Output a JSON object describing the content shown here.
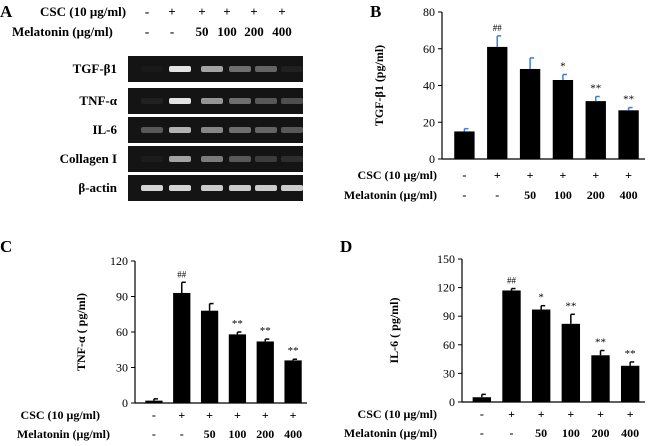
{
  "panel_labels": [
    "A",
    "B",
    "C",
    "D"
  ],
  "gel": {
    "header": {
      "csc_label": "CSC (10 μg/ml)",
      "mel_label": "Melatonin (μg/ml)",
      "csc": [
        "-",
        "+",
        "+",
        "+",
        "+",
        "+"
      ],
      "mel": [
        "-",
        "-",
        "50",
        "100",
        "200",
        "400"
      ]
    },
    "rows": [
      {
        "label": "TGF-β1",
        "intensity": [
          0.03,
          0.95,
          0.75,
          0.55,
          0.5,
          0.1
        ]
      },
      {
        "label": "TNF-α",
        "intensity": [
          0.1,
          0.95,
          0.7,
          0.55,
          0.45,
          0.4
        ]
      },
      {
        "label": "IL-6",
        "intensity": [
          0.45,
          0.8,
          0.65,
          0.55,
          0.5,
          0.45
        ]
      },
      {
        "label": "Collagen I",
        "intensity": [
          0.05,
          0.75,
          0.6,
          0.45,
          0.3,
          0.2
        ]
      },
      {
        "label": "β-actin",
        "intensity": [
          0.9,
          0.9,
          0.88,
          0.88,
          0.88,
          0.88
        ]
      }
    ]
  },
  "chart_data": [
    {
      "panel": "B",
      "type": "bar",
      "title": "",
      "xlabel": "",
      "ylabel": "TGF-β1 (pg/ml)",
      "ylim": [
        0,
        80
      ],
      "yticks": [
        0,
        20,
        40,
        60,
        80
      ],
      "values": [
        15,
        61,
        49,
        43,
        31.5,
        26.5
      ],
      "errors": [
        1.5,
        6,
        6,
        3,
        2.5,
        1.5
      ],
      "annotations": [
        "",
        "##",
        "",
        "*",
        "**",
        "**"
      ],
      "error_color": "#3b7fd6",
      "csc_label": "CSC (10 μg/ml)",
      "csc": [
        "-",
        "+",
        "+",
        "+",
        "+",
        "+"
      ],
      "mel_label": "Melatonin (μg/ml)",
      "mel": [
        "-",
        "-",
        "50",
        "100",
        "200",
        "400"
      ]
    },
    {
      "panel": "C",
      "type": "bar",
      "title": "",
      "xlabel": "",
      "ylabel": "TNF-α ( pg/ml)",
      "ylim": [
        0,
        120
      ],
      "yticks": [
        0,
        30,
        60,
        90,
        120
      ],
      "values": [
        2,
        93,
        78,
        58,
        52,
        36
      ],
      "errors": [
        1.5,
        9,
        6,
        2,
        2,
        1
      ],
      "annotations": [
        "",
        "##",
        "",
        "**",
        "**",
        "**"
      ],
      "error_color": "#000000",
      "csc_label": "CSC (10 μg/ml)",
      "csc": [
        "-",
        "+",
        "+",
        "+",
        "+",
        "+"
      ],
      "mel_label": "Melatonin (μg/ml)",
      "mel": [
        "-",
        "-",
        "50",
        "100",
        "200",
        "400"
      ]
    },
    {
      "panel": "D",
      "type": "bar",
      "title": "",
      "xlabel": "",
      "ylabel": "IL-6 ( pg/ml)",
      "ylim": [
        0,
        150
      ],
      "yticks": [
        0,
        30,
        60,
        90,
        120,
        150
      ],
      "values": [
        5,
        117,
        97,
        82,
        49,
        38
      ],
      "errors": [
        3,
        2,
        4,
        10,
        5,
        4
      ],
      "annotations": [
        "",
        "##",
        "*",
        "**",
        "**",
        "**"
      ],
      "error_color": "#000000",
      "csc_label": "CSC (10 μg/ml)",
      "csc": [
        "-",
        "+",
        "+",
        "+",
        "+",
        "+"
      ],
      "mel_label": "Melatonin (μg/ml)",
      "mel": [
        "-",
        "-",
        "50",
        "100",
        "200",
        "400"
      ]
    }
  ]
}
